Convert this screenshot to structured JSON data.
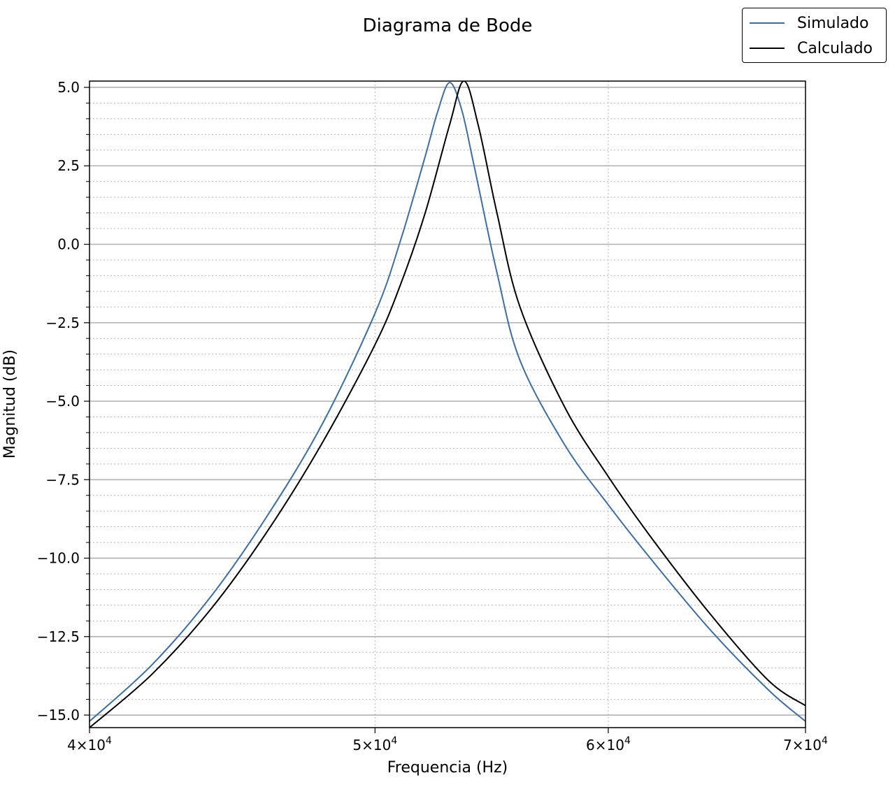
{
  "chart_data": {
    "type": "line",
    "title": "Diagrama de Bode",
    "xlabel": "Frequencia (Hz)",
    "ylabel": "Magnitud (dB)",
    "x_scale": "log",
    "xlim": [
      40000,
      70000
    ],
    "ylim": [
      -15.4,
      5.2
    ],
    "x_ticks": [
      {
        "value": 40000,
        "mantissa": "4",
        "exponent": "4"
      },
      {
        "value": 50000,
        "mantissa": "5",
        "exponent": "4"
      },
      {
        "value": 60000,
        "mantissa": "6",
        "exponent": "4"
      },
      {
        "value": 70000,
        "mantissa": "7",
        "exponent": "4"
      }
    ],
    "y_ticks": [
      5.0,
      2.5,
      0.0,
      -2.5,
      -5.0,
      -7.5,
      -10.0,
      -12.5,
      -15.0
    ],
    "y_tick_labels": [
      "5.0",
      "2.5",
      "0.0",
      "−2.5",
      "−5.0",
      "−7.5",
      "−10.0",
      "−12.5",
      "−15.0"
    ],
    "grid": {
      "major": true,
      "minor": true
    },
    "legend_position": "top-right, outside plot",
    "series": [
      {
        "name": "Simulado",
        "color": "#3a6ea5",
        "peak_frequency": 53000,
        "peak_db": 5.15,
        "x": [
          40000,
          42000,
          44000,
          46000,
          48000,
          50000,
          51000,
          52000,
          52500,
          53000,
          53500,
          54000,
          55000,
          56000,
          58000,
          60000,
          62000,
          65000,
          68000,
          70000
        ],
        "y": [
          -15.2,
          -13.4,
          -11.2,
          -8.6,
          -5.7,
          -2.2,
          0.1,
          2.8,
          4.2,
          5.15,
          4.3,
          2.6,
          -0.9,
          -3.7,
          -6.4,
          -8.3,
          -10.0,
          -12.3,
          -14.2,
          -15.2
        ]
      },
      {
        "name": "Calculado",
        "color": "#000000",
        "peak_frequency": 53600,
        "peak_db": 5.2,
        "x": [
          40000,
          42000,
          44000,
          46000,
          48000,
          50000,
          51000,
          52000,
          53000,
          53600,
          54200,
          55000,
          56000,
          58000,
          60000,
          62000,
          65000,
          68000,
          70000
        ],
        "y": [
          -15.4,
          -13.7,
          -11.6,
          -9.1,
          -6.3,
          -3.2,
          -1.3,
          1.0,
          3.8,
          5.2,
          3.8,
          1.0,
          -2.0,
          -5.2,
          -7.4,
          -9.3,
          -11.8,
          -13.9,
          -14.7
        ]
      }
    ]
  }
}
